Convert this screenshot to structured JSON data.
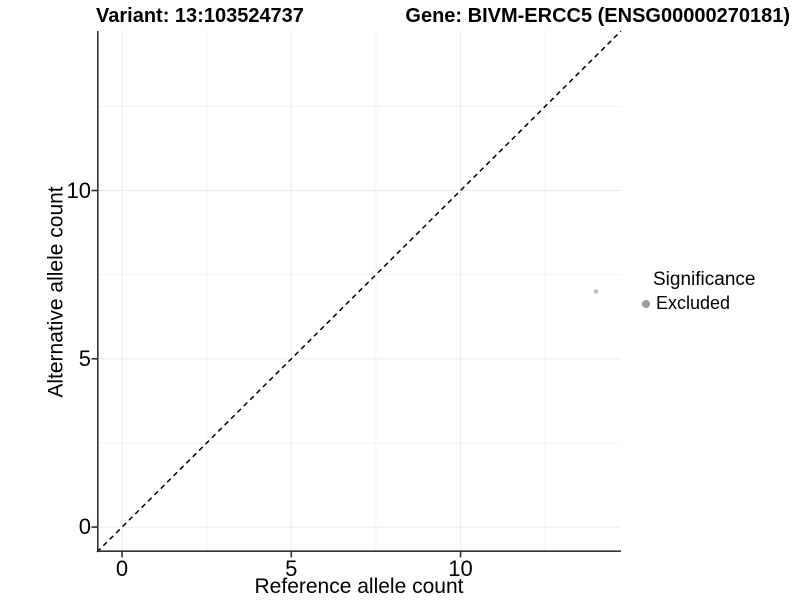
{
  "titles": {
    "variant": "Variant: 13:103524737",
    "gene": "Gene: BIVM-ERCC5 (ENSG00000270181)"
  },
  "chart_data": {
    "type": "scatter",
    "title_left": "Variant: 13:103524737",
    "title_right": "Gene: BIVM-ERCC5 (ENSG00000270181)",
    "xlabel": "Reference allele count",
    "ylabel": "Alternative allele count",
    "xlim": [
      -0.74,
      14.74
    ],
    "ylim": [
      -0.74,
      14.74
    ],
    "xticks": [
      0,
      5,
      10
    ],
    "yticks": [
      0,
      5,
      10
    ],
    "grid": {
      "major": [
        0,
        5,
        10
      ],
      "minor": [
        2.5,
        7.5,
        12.5
      ]
    },
    "identity_line": {
      "style": "dashed",
      "color": "#000000",
      "slope": 1,
      "intercept": 0
    },
    "points": [
      {
        "x": 14,
        "y": 7,
        "significance": "Excluded",
        "color": "#bdbdbd",
        "radius": 2.3
      }
    ],
    "legend": {
      "position": "right",
      "title": "Significance",
      "items": [
        {
          "label": "Excluded",
          "color": "#9b9b9b"
        }
      ]
    },
    "colors": {
      "axis_line": "#333333",
      "tick_mark": "#333333",
      "tick_label": "#000000",
      "grid_major": "#ebebeb",
      "grid_minor": "#f3f3f3",
      "background": "#ffffff"
    }
  }
}
